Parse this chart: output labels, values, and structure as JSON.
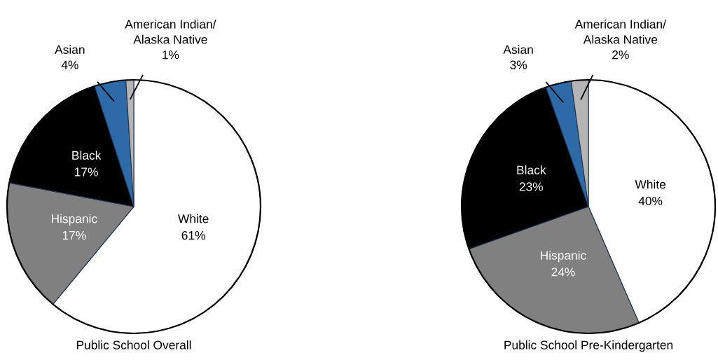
{
  "chart_data": [
    {
      "type": "pie",
      "title": "Public School Overall",
      "categories": [
        "White",
        "Hispanic",
        "Black",
        "Asian",
        "American Indian/\nAlaska Native"
      ],
      "values": [
        61,
        17,
        17,
        4,
        1
      ],
      "value_labels": [
        "61%",
        "17%",
        "17%",
        "4%",
        "1%"
      ],
      "colors": [
        "#ffffff",
        "#808080",
        "#000000",
        "#2e6aa8",
        "#b4b4b4"
      ]
    },
    {
      "type": "pie",
      "title": "Public School Pre-Kindergarten",
      "categories": [
        "White",
        "Hispanic",
        "Black",
        "Asian",
        "American Indian/\nAlaska Native"
      ],
      "values": [
        40,
        24,
        23,
        3,
        2
      ],
      "value_labels": [
        "40%",
        "24%",
        "23%",
        "3%",
        "2%"
      ],
      "colors": [
        "#ffffff",
        "#808080",
        "#000000",
        "#2e6aa8",
        "#b4b4b4"
      ]
    }
  ]
}
